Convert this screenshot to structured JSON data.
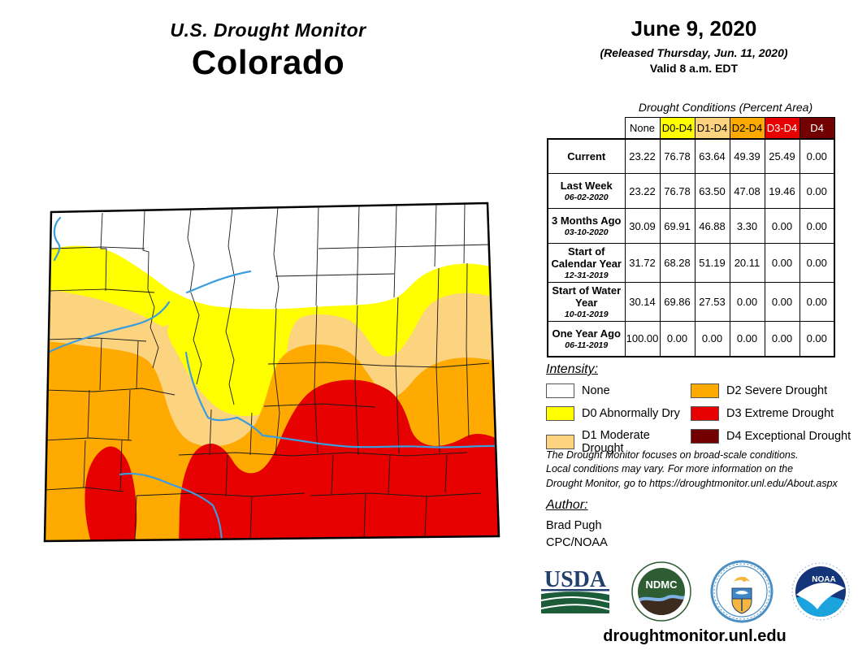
{
  "header": {
    "title": "U.S. Drought Monitor",
    "state": "Colorado"
  },
  "date_block": {
    "date": "June 9, 2020",
    "released": "(Released Thursday, Jun. 11, 2020)",
    "valid": "Valid 8 a.m. EDT"
  },
  "table": {
    "title": "Drought Conditions (Percent Area)",
    "columns": [
      "None",
      "D0-D4",
      "D1-D4",
      "D2-D4",
      "D3-D4",
      "D4"
    ],
    "header_colors": [
      "#FFFFFF",
      "#FFFF00",
      "#FCD37F",
      "#FFAA00",
      "#E60000",
      "#730000"
    ],
    "header_text_colors": [
      "#000000",
      "#000000",
      "#000000",
      "#000000",
      "#FFFFFF",
      "#FFFFFF"
    ],
    "rows": [
      {
        "label": "Current",
        "date": "",
        "values": [
          "23.22",
          "76.78",
          "63.64",
          "49.39",
          "25.49",
          "0.00"
        ]
      },
      {
        "label": "Last Week",
        "date": "06-02-2020",
        "values": [
          "23.22",
          "76.78",
          "63.50",
          "47.08",
          "19.46",
          "0.00"
        ]
      },
      {
        "label": "3 Months Ago",
        "date": "03-10-2020",
        "values": [
          "30.09",
          "69.91",
          "46.88",
          "3.30",
          "0.00",
          "0.00"
        ]
      },
      {
        "label": "Start of Calendar Year",
        "date": "12-31-2019",
        "values": [
          "31.72",
          "68.28",
          "51.19",
          "20.11",
          "0.00",
          "0.00"
        ]
      },
      {
        "label": "Start of Water Year",
        "date": "10-01-2019",
        "values": [
          "30.14",
          "69.86",
          "27.53",
          "0.00",
          "0.00",
          "0.00"
        ]
      },
      {
        "label": "One Year Ago",
        "date": "06-11-2019",
        "values": [
          "100.00",
          "0.00",
          "0.00",
          "0.00",
          "0.00",
          "0.00"
        ]
      }
    ]
  },
  "legend": {
    "title": "Intensity:",
    "items": [
      {
        "label": "None",
        "color": "#FFFFFF"
      },
      {
        "label": "D0 Abnormally Dry",
        "color": "#FFFF00"
      },
      {
        "label": "D1 Moderate Drought",
        "color": "#FCD37F"
      },
      {
        "label": "D2 Severe Drought",
        "color": "#FFAA00"
      },
      {
        "label": "D3 Extreme Drought",
        "color": "#E60000"
      },
      {
        "label": "D4 Exceptional Drought",
        "color": "#730000"
      }
    ]
  },
  "disclaimer": "The Drought Monitor focuses on broad-scale conditions.\nLocal conditions may vary. For more information on the\nDrought Monitor, go to https://droughtmonitor.unl.edu/About.aspx",
  "author": {
    "title": "Author:",
    "name": "Brad Pugh",
    "org": "CPC/NOAA"
  },
  "logos": {
    "usda": {
      "text": "USDA"
    },
    "ndmc": {
      "text": "NDMC"
    },
    "doc": {
      "name": "Department of Commerce seal"
    },
    "noaa": {
      "text": "NOAA"
    }
  },
  "footer": {
    "url": "droughtmonitor.unl.edu"
  },
  "map": {
    "region": "Colorado",
    "colors": {
      "none": "#FFFFFF",
      "d0": "#FFFF00",
      "d1": "#FCD37F",
      "d2": "#FFAA00",
      "d3": "#E60000",
      "d4": "#730000",
      "river": "#3B9DDD"
    }
  }
}
